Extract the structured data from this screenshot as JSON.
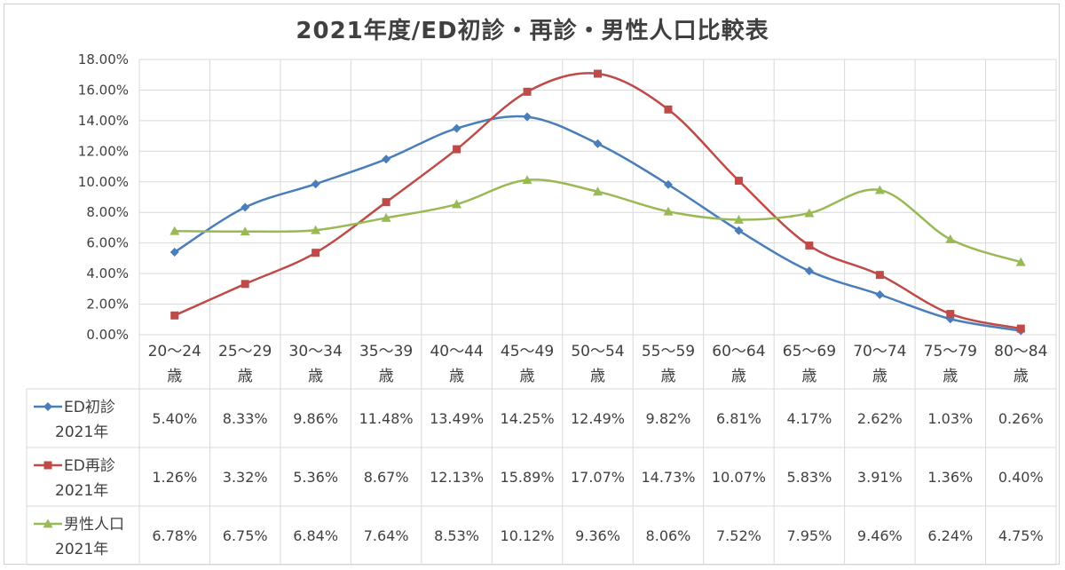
{
  "chart_data": {
    "type": "line",
    "title": "2021年度/ED初診・再診・男性人口比較表",
    "xlabel": "",
    "ylabel": "",
    "ylim": [
      0,
      18
    ],
    "y_ticks": [
      "0.00%",
      "2.00%",
      "4.00%",
      "6.00%",
      "8.00%",
      "10.00%",
      "12.00%",
      "14.00%",
      "16.00%",
      "18.00%"
    ],
    "grid": true,
    "legend": "data-table-left",
    "categories": [
      [
        "20～24",
        "歳"
      ],
      [
        "25～29",
        "歳"
      ],
      [
        "30～34",
        "歳"
      ],
      [
        "35～39",
        "歳"
      ],
      [
        "40～44",
        "歳"
      ],
      [
        "45～49",
        "歳"
      ],
      [
        "50～54",
        "歳"
      ],
      [
        "55～59",
        "歳"
      ],
      [
        "60～64",
        "歳"
      ],
      [
        "65～69",
        "歳"
      ],
      [
        "70～74",
        "歳"
      ],
      [
        "75～79",
        "歳"
      ],
      [
        "80～84",
        "歳"
      ]
    ],
    "series": [
      {
        "name": [
          "ED初診",
          "2021年"
        ],
        "color": "#4a7ebb",
        "marker": "diamond",
        "values": [
          5.4,
          8.33,
          9.86,
          11.48,
          13.49,
          14.25,
          12.49,
          9.82,
          6.81,
          4.17,
          2.62,
          1.03,
          0.26
        ],
        "labels": [
          "5.40%",
          "8.33%",
          "9.86%",
          "11.48%",
          "13.49%",
          "14.25%",
          "12.49%",
          "9.82%",
          "6.81%",
          "4.17%",
          "2.62%",
          "1.03%",
          "0.26%"
        ]
      },
      {
        "name": [
          "ED再診",
          "2021年"
        ],
        "color": "#be4b48",
        "marker": "square",
        "values": [
          1.26,
          3.32,
          5.36,
          8.67,
          12.13,
          15.89,
          17.07,
          14.73,
          10.07,
          5.83,
          3.91,
          1.36,
          0.4
        ],
        "labels": [
          "1.26%",
          "3.32%",
          "5.36%",
          "8.67%",
          "12.13%",
          "15.89%",
          "17.07%",
          "14.73%",
          "10.07%",
          "5.83%",
          "3.91%",
          "1.36%",
          "0.40%"
        ]
      },
      {
        "name": [
          "男性人口",
          "2021年"
        ],
        "color": "#98b954",
        "marker": "triangle",
        "values": [
          6.78,
          6.75,
          6.84,
          7.64,
          8.53,
          10.12,
          9.36,
          8.06,
          7.52,
          7.95,
          9.46,
          6.24,
          4.75
        ],
        "labels": [
          "6.78%",
          "6.75%",
          "6.84%",
          "7.64%",
          "8.53%",
          "10.12%",
          "9.36%",
          "8.06%",
          "7.52%",
          "7.95%",
          "9.46%",
          "6.24%",
          "4.75%"
        ]
      }
    ]
  }
}
